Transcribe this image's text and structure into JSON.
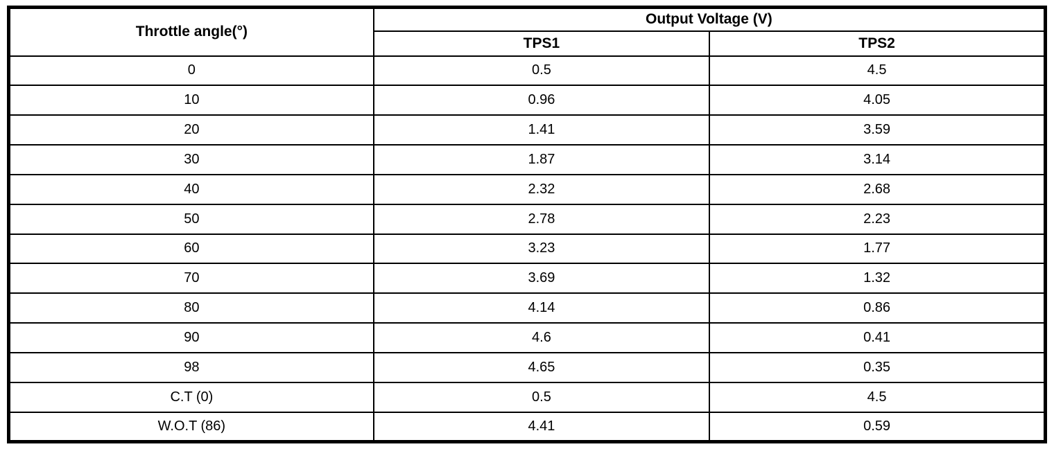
{
  "table": {
    "col1_header": "Throttle angle(°)",
    "group_header": "Output Voltage (V)",
    "sub_headers": [
      "TPS1",
      "TPS2"
    ],
    "rows": [
      {
        "angle": "0",
        "tps1": "0.5",
        "tps2": "4.5"
      },
      {
        "angle": "10",
        "tps1": "0.96",
        "tps2": "4.05"
      },
      {
        "angle": "20",
        "tps1": "1.41",
        "tps2": "3.59"
      },
      {
        "angle": "30",
        "tps1": "1.87",
        "tps2": "3.14"
      },
      {
        "angle": "40",
        "tps1": "2.32",
        "tps2": "2.68"
      },
      {
        "angle": "50",
        "tps1": "2.78",
        "tps2": "2.23"
      },
      {
        "angle": "60",
        "tps1": "3.23",
        "tps2": "1.77"
      },
      {
        "angle": "70",
        "tps1": "3.69",
        "tps2": "1.32"
      },
      {
        "angle": "80",
        "tps1": "4.14",
        "tps2": "0.86"
      },
      {
        "angle": "90",
        "tps1": "4.6",
        "tps2": "0.41"
      },
      {
        "angle": "98",
        "tps1": "4.65",
        "tps2": "0.35"
      },
      {
        "angle": "C.T (0)",
        "tps1": "0.5",
        "tps2": "4.5"
      },
      {
        "angle": "W.O.T (86)",
        "tps1": "4.41",
        "tps2": "0.59"
      }
    ]
  }
}
